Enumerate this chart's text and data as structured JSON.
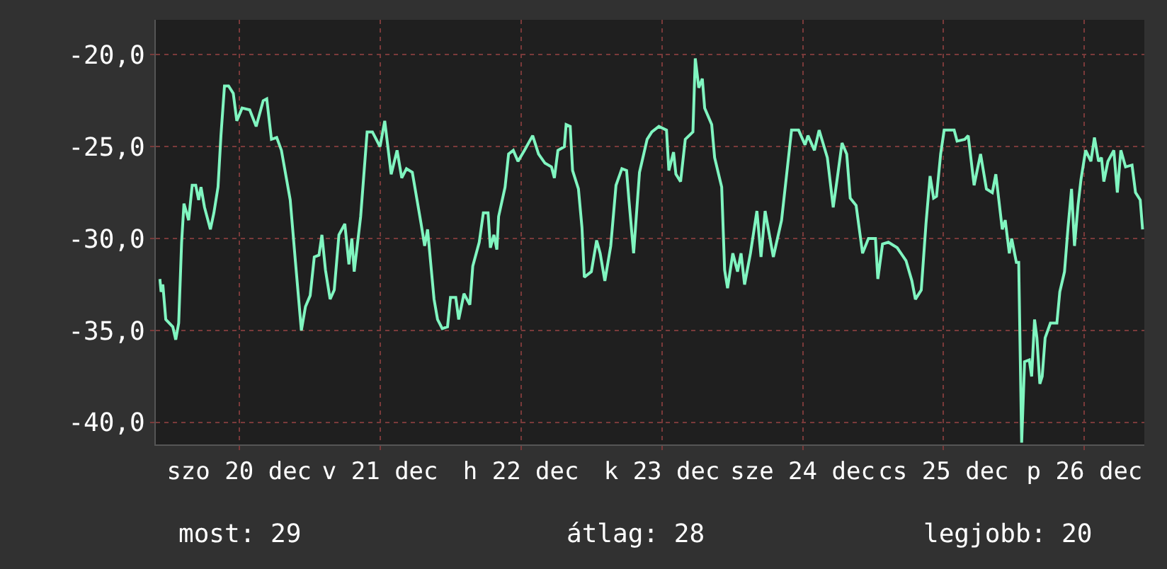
{
  "chart_data": {
    "type": "line",
    "x": [
      "--12-19T22:30",
      "--12-19T22:42",
      "--12-19T23:00",
      "--12-19T23:30",
      "--12-20T00:42",
      "--12-20T01:12",
      "--12-20T01:42",
      "--12-20T02:12",
      "--12-20T02:36",
      "--12-20T03:24",
      "--12-20T04:00",
      "--12-20T04:36",
      "--12-20T05:06",
      "--12-20T05:30",
      "--12-20T06:06",
      "--12-20T07:06",
      "--12-20T07:42",
      "--12-20T08:24",
      "--12-20T08:54",
      "--12-20T09:30",
      "--12-20T10:12",
      "--12-20T11:00",
      "--12-20T11:36",
      "--12-20T12:30",
      "--12-20T13:48",
      "--12-20T14:54",
      "--12-20T16:06",
      "--12-20T16:42",
      "--12-20T17:30",
      "--12-20T18:24",
      "--12-20T19:12",
      "--12-20T20:42",
      "--12-20T21:36",
      "--12-20T22:36",
      "--12-20T23:18",
      "--12-21T00:06",
      "--12-21T00:48",
      "--12-21T01:36",
      "--12-21T02:06",
      "--12-21T02:42",
      "--12-21T03:30",
      "--12-21T04:12",
      "--12-21T05:00",
      "--12-21T06:00",
      "--12-21T06:42",
      "--12-21T07:12",
      "--12-21T07:36",
      "--12-21T08:42",
      "--12-21T09:48",
      "--12-21T10:42",
      "--12-21T12:00",
      "--12-21T12:48",
      "--12-21T13:54",
      "--12-21T14:54",
      "--12-21T15:42",
      "--12-21T16:30",
      "--12-21T17:30",
      "--12-21T19:00",
      "--12-21T19:36",
      "--12-21T20:06",
      "--12-21T21:12",
      "--12-21T21:48",
      "--12-21T22:36",
      "--12-21T23:30",
      "--12-22T00:00",
      "--12-22T00:54",
      "--12-22T01:24",
      "--12-22T02:18",
      "--12-22T03:18",
      "--12-22T03:48",
      "--12-22T04:54",
      "--12-22T05:36",
      "--12-22T06:24",
      "--12-22T06:48",
      "--12-22T07:24",
      "--12-22T07:54",
      "--12-22T08:12",
      "--12-22T09:18",
      "--12-22T09:54",
      "--12-22T10:42",
      "--12-22T11:30",
      "--12-22T12:36",
      "--12-22T14:00",
      "--12-22T15:00",
      "--12-22T16:06",
      "--12-22T17:12",
      "--12-22T17:42",
      "--12-22T18:18",
      "--12-22T19:24",
      "--12-22T19:42",
      "--12-22T20:24",
      "--12-22T20:48",
      "--12-22T21:48",
      "--12-22T22:24",
      "--12-22T22:48",
      "--12-23T00:00",
      "--12-23T00:54",
      "--12-23T01:30",
      "--12-23T02:18",
      "--12-23T03:18",
      "--12-23T04:12",
      "--12-23T05:12",
      "--12-23T06:00",
      "--12-23T06:24",
      "--12-23T07:12",
      "--12-23T08:12",
      "--12-23T09:30",
      "--12-23T10:18",
      "--12-23T11:30",
      "--12-23T12:48",
      "--12-23T13:12",
      "--12-23T14:00",
      "--12-23T14:24",
      "--12-23T15:12",
      "--12-23T16:00",
      "--12-23T17:18",
      "--12-23T17:42",
      "--12-23T18:18",
      "--12-23T18:54",
      "--12-23T19:18",
      "--12-23T20:30",
      "--12-23T21:00",
      "--12-23T22:12",
      "--12-23T22:42",
      "--12-23T23:12",
      "--12-24T00:06",
      "--12-24T00:54",
      "--12-24T01:30",
      "--12-24T02:06",
      "--12-24T03:06",
      "--12-24T04:12",
      "--12-24T04:54",
      "--12-24T05:36",
      "--12-24T07:00",
      "--12-24T08:24",
      "--12-24T09:12",
      "--12-24T10:06",
      "--12-24T11:18",
      "--12-24T12:24",
      "--12-24T12:54",
      "--12-24T14:00",
      "--12-24T14:48",
      "--12-24T16:12",
      "--12-24T17:12",
      "--12-24T17:54",
      "--12-24T18:42",
      "--12-24T19:30",
      "--12-24T20:06",
      "--12-24T21:06",
      "--12-24T22:12",
      "--12-24T23:12",
      "--12-25T00:24",
      "--12-25T00:48",
      "--12-25T01:36",
      "--12-25T02:36",
      "--12-25T04:06",
      "--12-25T05:36",
      "--12-25T06:36",
      "--12-25T07:12",
      "--12-25T08:12",
      "--12-25T09:00",
      "--12-25T09:42",
      "--12-25T10:18",
      "--12-25T10:48",
      "--12-25T11:30",
      "--12-25T12:06",
      "--12-25T13:48",
      "--12-25T14:18",
      "--12-25T15:36",
      "--12-25T16:12",
      "--12-25T17:12",
      "--12-25T18:18",
      "--12-25T19:18",
      "--12-25T20:18",
      "--12-25T20:54",
      "--12-25T22:00",
      "--12-25T22:30",
      "--12-25T23:12",
      "--12-25T23:36",
      "--12-26T00:24",
      "--12-26T00:48",
      "--12-26T01:18",
      "--12-26T01:48",
      "--12-26T02:36",
      "--12-26T03:00",
      "--12-26T03:30",
      "--12-26T03:54",
      "--12-26T04:24",
      "--12-26T04:48",
      "--12-26T05:18",
      "--12-26T06:12",
      "--12-26T07:18",
      "--12-26T07:48",
      "--12-26T08:36",
      "--12-26T09:12",
      "--12-26T09:48",
      "--12-26T10:18",
      "--12-26T10:54",
      "--12-26T11:24",
      "--12-26T12:12",
      "--12-26T13:06",
      "--12-26T13:42",
      "--12-26T14:24",
      "--12-26T14:54",
      "--12-26T15:18",
      "--12-26T16:00",
      "--12-26T17:00",
      "--12-26T17:36",
      "--12-26T18:12",
      "--12-26T19:00",
      "--12-26T20:06",
      "--12-26T20:42",
      "--12-26T21:30",
      "--12-26T21:54"
    ],
    "series": [
      {
        "color": "#80f5c0",
        "values": [
          -32.2,
          -32.9,
          -32.5,
          -34.4,
          -34.8,
          -35.5,
          -34.6,
          -30.2,
          -28.1,
          -29.0,
          -27.1,
          -27.1,
          -27.9,
          -27.2,
          -28.3,
          -29.5,
          -28.6,
          -27.2,
          -24.4,
          -21.7,
          -21.7,
          -22.1,
          -23.6,
          -22.9,
          -23.0,
          -23.9,
          -22.5,
          -22.4,
          -24.6,
          -24.5,
          -25.2,
          -27.9,
          -31.3,
          -35.0,
          -33.7,
          -33.1,
          -31.0,
          -30.9,
          -29.8,
          -31.7,
          -33.3,
          -32.8,
          -29.8,
          -29.2,
          -31.4,
          -30.0,
          -31.8,
          -28.8,
          -24.2,
          -24.2,
          -25.0,
          -23.6,
          -26.5,
          -25.2,
          -26.7,
          -26.2,
          -26.4,
          -29.2,
          -30.4,
          -29.5,
          -33.3,
          -34.4,
          -34.9,
          -34.8,
          -33.2,
          -33.2,
          -34.4,
          -33.0,
          -33.6,
          -31.5,
          -30.2,
          -28.6,
          -28.6,
          -30.5,
          -29.8,
          -30.6,
          -28.8,
          -27.2,
          -25.4,
          -25.2,
          -25.8,
          -25.2,
          -24.4,
          -25.4,
          -25.9,
          -26.1,
          -26.7,
          -25.2,
          -25.0,
          -23.8,
          -23.9,
          -26.3,
          -27.3,
          -29.4,
          -32.1,
          -31.8,
          -30.1,
          -30.8,
          -32.3,
          -30.4,
          -27.1,
          -26.2,
          -26.3,
          -27.9,
          -30.8,
          -26.4,
          -24.6,
          -24.2,
          -23.9,
          -24.1,
          -26.3,
          -25.3,
          -26.5,
          -26.9,
          -24.6,
          -24.2,
          -20.2,
          -21.8,
          -21.3,
          -22.9,
          -23.8,
          -25.6,
          -27.2,
          -31.7,
          -32.7,
          -30.8,
          -31.8,
          -30.8,
          -32.5,
          -30.8,
          -28.5,
          -31.0,
          -28.5,
          -31.0,
          -29.0,
          -26.7,
          -24.1,
          -24.1,
          -24.9,
          -24.4,
          -25.2,
          -24.1,
          -25.6,
          -28.3,
          -26.7,
          -24.8,
          -25.4,
          -27.8,
          -28.2,
          -30.8,
          -30.0,
          -30.0,
          -32.2,
          -30.3,
          -30.2,
          -30.5,
          -31.2,
          -32.3,
          -33.3,
          -32.8,
          -29.2,
          -26.6,
          -27.8,
          -27.7,
          -25.4,
          -24.1,
          -24.1,
          -24.7,
          -24.6,
          -24.4,
          -27.1,
          -25.4,
          -27.3,
          -27.5,
          -26.5,
          -29.5,
          -29.0,
          -30.8,
          -30.0,
          -31.3,
          -31.3,
          -41.1,
          -36.7,
          -36.6,
          -37.5,
          -34.4,
          -35.4,
          -37.9,
          -37.5,
          -35.4,
          -34.6,
          -34.6,
          -32.9,
          -31.8,
          -29.4,
          -27.3,
          -30.4,
          -28.2,
          -26.8,
          -25.2,
          -25.8,
          -24.5,
          -25.8,
          -25.6,
          -26.9,
          -25.8,
          -25.2,
          -27.5,
          -25.2,
          -26.1,
          -26.0,
          -27.5,
          -27.9,
          -29.5
        ]
      }
    ],
    "xlim": [
      "--12-19T21:48",
      "--12-26T22:12"
    ],
    "xticks": [
      {
        "value": "--12-20T12:00",
        "label": "szo 20 dec"
      },
      {
        "value": "--12-21T12:00",
        "label": "v 21 dec"
      },
      {
        "value": "--12-22T12:00",
        "label": "h 22 dec"
      },
      {
        "value": "--12-23T12:00",
        "label": "k 23 dec"
      },
      {
        "value": "--12-24T12:00",
        "label": "sze 24 dec"
      },
      {
        "value": "--12-25T12:00",
        "label": "cs 25 dec"
      },
      {
        "value": "--12-26T12:00",
        "label": "p 26 dec"
      }
    ],
    "ylim": [
      -41.2,
      -18.1
    ],
    "yticks": [
      {
        "value": -20,
        "label": "-20,0"
      },
      {
        "value": -25,
        "label": "-25,0"
      },
      {
        "value": -30,
        "label": "-30,0"
      },
      {
        "value": -35,
        "label": "-35,0"
      },
      {
        "value": -40,
        "label": "-40,0"
      }
    ],
    "grid": true,
    "line_style": "solid",
    "annotations": [
      "most: 29",
      "átlag: 28",
      "legjobb: 20"
    ]
  }
}
